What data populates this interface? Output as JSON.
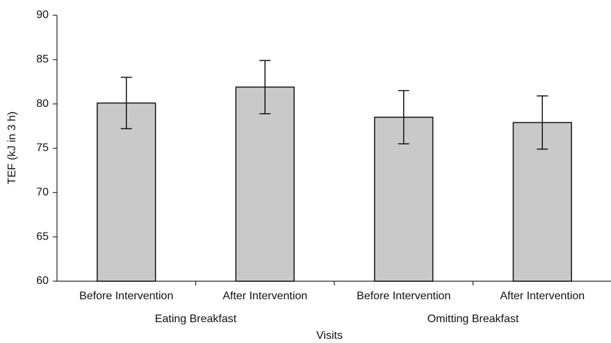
{
  "chart_data": {
    "type": "bar",
    "categories": [
      "Before Intervention",
      "After Intervention",
      "Before Intervention",
      "After Intervention"
    ],
    "groups": [
      "Eating Breakfast",
      "Omitting Breakfast"
    ],
    "values": [
      80.1,
      81.9,
      78.5,
      77.9
    ],
    "errors": [
      2.9,
      3.0,
      3.0,
      3.0
    ],
    "color": "#c9c9c9",
    "xlabel": "Visits",
    "ylabel": "TEF (kJ in 3 h)",
    "ylim": [
      60,
      90
    ],
    "yticks": [
      60,
      65,
      70,
      75,
      80,
      85,
      90
    ],
    "grid": false
  }
}
